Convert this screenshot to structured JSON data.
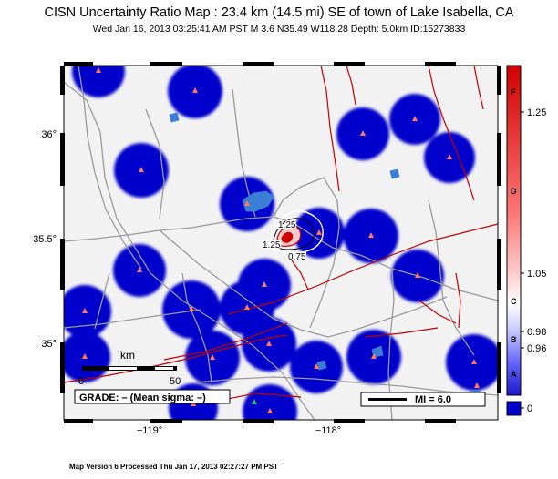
{
  "title": "CISN Uncertainty Ratio Map : 23.4 km (14.5 mi) SE of town of Lake Isabella, CA",
  "subtitle": "Wed Jan 16, 2013 03:25:41 AM PST   M 3.6   N35.49 W118.28   Depth: 5.0km   ID:15273833",
  "axes": {
    "lat_labels": [
      "36°",
      "35.5°",
      "35°"
    ],
    "lon_labels": [
      "−119°",
      "−118°"
    ]
  },
  "contour_labels": [
    "1.25",
    "1.25",
    "0.75"
  ],
  "scale_bar": {
    "label": "km",
    "start": "0",
    "end": "50"
  },
  "grade_box": "GRADE: – (Mean sigma: –)",
  "legend_box": "MI = 6.0",
  "colorbar": {
    "values": [
      "1.25",
      "1.05",
      "0.98",
      "0.96",
      "0"
    ],
    "letters": [
      "F",
      "D",
      "C",
      "B",
      "A"
    ]
  },
  "colors": {
    "blue": "#0000cc",
    "fault": "#c00000",
    "road": "#9a9a9a",
    "water": "#3a7fd5",
    "station": "#ff7a55",
    "land": "#f2f2f2"
  },
  "footer": "Map Version 6 Processed Thu Jan 17, 2013 02:27:27 PM PST"
}
